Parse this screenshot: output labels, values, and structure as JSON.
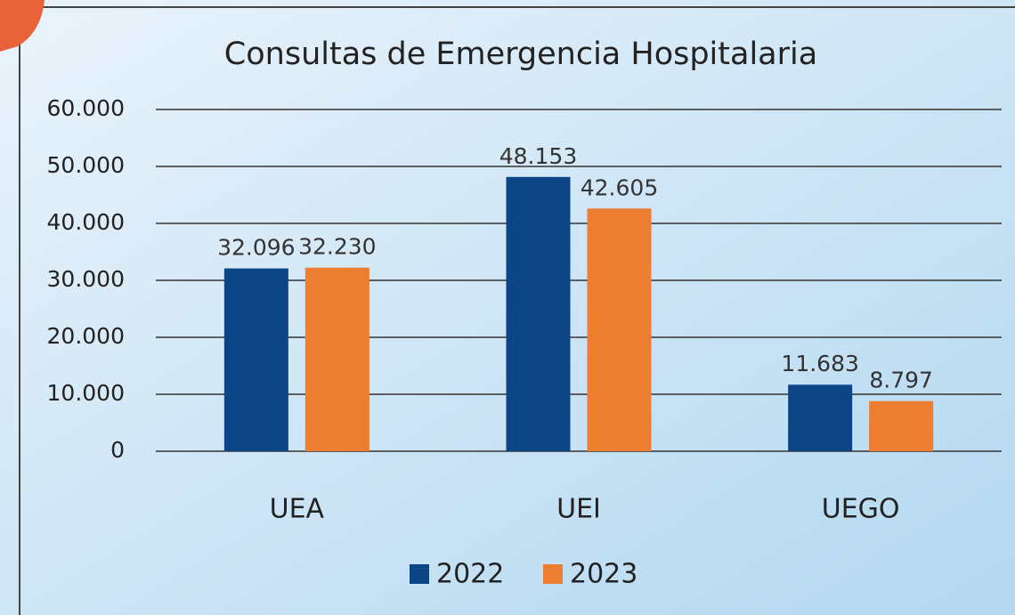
{
  "chart_data": {
    "type": "bar",
    "title": "Consultas de Emergencia Hospitalaria",
    "categories": [
      "UEA",
      "UEI",
      "UEGO"
    ],
    "series": [
      {
        "name": "2022",
        "color": "#0b4585",
        "values": [
          32096,
          48153,
          11683
        ],
        "value_labels": [
          "32.096",
          "48.153",
          "11.683"
        ]
      },
      {
        "name": "2023",
        "color": "#ed7d31",
        "values": [
          32230,
          42605,
          8797
        ],
        "value_labels": [
          "32.230",
          "42.605",
          "8.797"
        ]
      }
    ],
    "ylim": [
      0,
      60000
    ],
    "yticks": [
      0,
      {
        "value": 10000,
        "label": "10.000"
      },
      {
        "value": 20000,
        "label": "20.000"
      },
      {
        "value": 30000,
        "label": "30.000"
      },
      {
        "value": 40000,
        "label": "40.000"
      },
      {
        "value": 50000,
        "label": "50.000"
      },
      {
        "value": 60000,
        "label": "60.000"
      }
    ],
    "grid": true,
    "legend": "bottom"
  }
}
